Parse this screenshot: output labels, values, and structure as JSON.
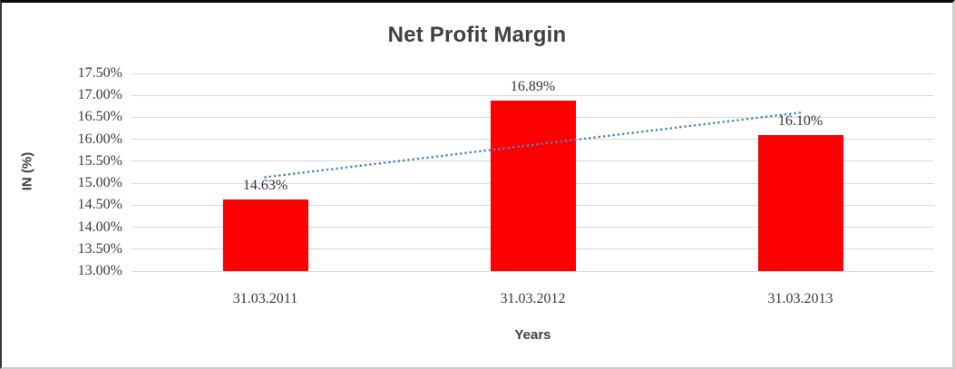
{
  "chart_data": {
    "type": "bar",
    "title": "Net Profit Margin",
    "xlabel": "Years",
    "ylabel": "IN (%)",
    "categories": [
      "31.03.2011",
      "31.03.2012",
      "31.03.2013"
    ],
    "values": [
      14.63,
      16.89,
      16.1
    ],
    "data_labels": [
      "14.63%",
      "16.89%",
      "16.10%"
    ],
    "ylim": [
      13.0,
      17.5
    ],
    "ytick_values": [
      17.5,
      17.0,
      16.5,
      16.0,
      15.5,
      15.0,
      14.5,
      14.0,
      13.5,
      13.0
    ],
    "ytick_labels": [
      "17.50%",
      "17.00%",
      "16.50%",
      "16.00%",
      "15.50%",
      "15.00%",
      "14.50%",
      "14.00%",
      "13.50%",
      "13.00%"
    ],
    "grid": true,
    "legend": "none",
    "colors": {
      "bar": "#ff0000",
      "gridline": "#d9d9d9",
      "trendline": "#4a86c8",
      "title_text": "#404040",
      "tick_text": "#3b3b3b"
    },
    "trendline": {
      "type": "linear",
      "style": "dotted",
      "series": "values"
    }
  }
}
